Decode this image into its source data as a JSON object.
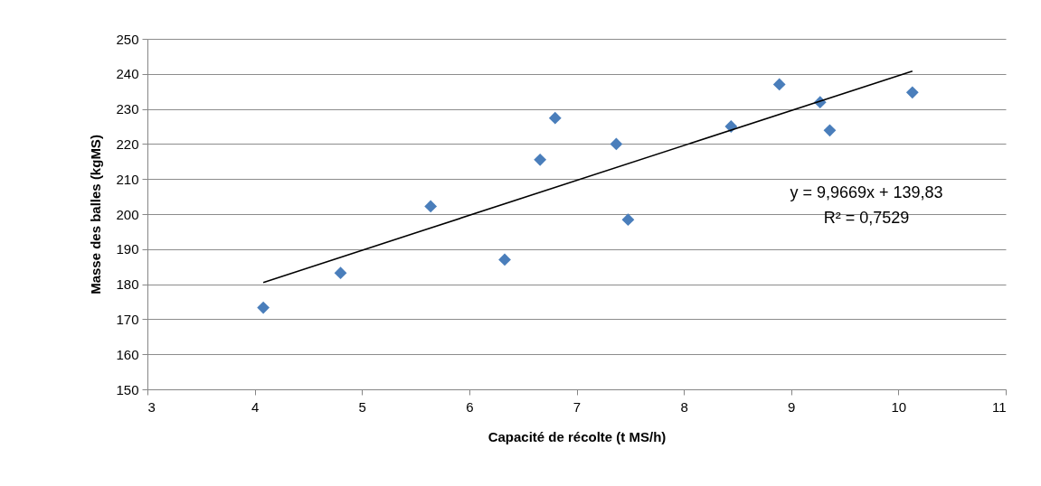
{
  "chart_data": {
    "type": "scatter",
    "xlabel": "Capacité de récolte (t MS/h)",
    "ylabel": "Masse des balles (kgMS)",
    "xlim": [
      3,
      11
    ],
    "xticks": [
      3,
      4,
      5,
      6,
      7,
      8,
      9,
      10,
      11
    ],
    "ylim": [
      150,
      250
    ],
    "yticks": [
      150,
      160,
      170,
      180,
      190,
      200,
      210,
      220,
      230,
      240,
      250
    ],
    "grid": "y",
    "annotations": [
      "y = 9,9669x + 139,83",
      "R² = 0,7529"
    ],
    "series": [
      {
        "marker": "diamond",
        "color": "#4a7ebb",
        "x": [
          4.08,
          4.8,
          5.64,
          6.33,
          6.66,
          6.8,
          7.37,
          7.48,
          8.44,
          8.89,
          9.27,
          9.36,
          10.13
        ],
        "values": [
          173.3,
          183.2,
          202.2,
          187.0,
          215.5,
          227.4,
          220.0,
          198.4,
          225.0,
          237.0,
          231.9,
          223.9,
          234.7
        ]
      },
      {
        "type": "line",
        "color": "#000000",
        "line_style": "solid",
        "x": [
          4.08,
          10.13
        ],
        "values": [
          180.5,
          240.8
        ]
      }
    ]
  }
}
